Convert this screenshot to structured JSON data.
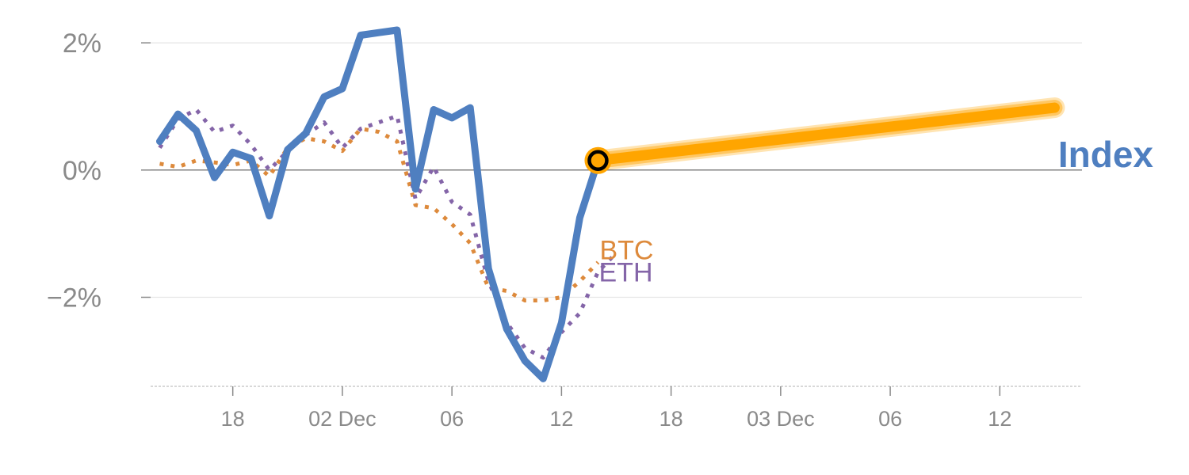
{
  "chart_data": {
    "type": "line",
    "y_unit": "%",
    "ylim": [
      -3.4,
      2.3
    ],
    "y_ticks": [
      2,
      0,
      -2
    ],
    "y_tick_labels": [
      "2%",
      "0%",
      "−2%"
    ],
    "x_ticks": [
      {
        "i": 4,
        "label": "18"
      },
      {
        "i": 10,
        "label": "02 Dec"
      },
      {
        "i": 16,
        "label": "06"
      },
      {
        "i": 22,
        "label": "12"
      },
      {
        "i": 28,
        "label": "18"
      },
      {
        "i": 34,
        "label": "03 Dec"
      },
      {
        "i": 40,
        "label": "06"
      },
      {
        "i": 46,
        "label": "12"
      }
    ],
    "x_range": [
      -0.5,
      50.5
    ],
    "grid": true,
    "colors": {
      "Index": "#4f7fc0",
      "BTC": "#dd8a3c",
      "ETH": "#8465a8",
      "projection": "#ffa500",
      "grid": "#e6e6e6",
      "zero_line": "#808080",
      "tick_text": "#8a8a8a"
    },
    "series": [
      {
        "name": "Index",
        "x": [
          0,
          1,
          2,
          3,
          4,
          5,
          6,
          7,
          8,
          9,
          10,
          11,
          12,
          13,
          14,
          15,
          16,
          17,
          18,
          19,
          20,
          21,
          22,
          23,
          24
        ],
        "values": [
          0.45,
          0.88,
          0.62,
          -0.12,
          0.28,
          0.18,
          -0.72,
          0.32,
          0.58,
          1.15,
          1.28,
          2.12,
          2.16,
          2.2,
          -0.3,
          0.95,
          0.82,
          0.98,
          -1.55,
          -2.5,
          -3.0,
          -3.28,
          -2.4,
          -0.75,
          0.15
        ]
      },
      {
        "name": "BTC",
        "x": [
          0,
          1,
          2,
          3,
          4,
          5,
          6,
          7,
          8,
          9,
          10,
          11,
          12,
          13,
          14,
          15,
          16,
          17,
          18,
          19,
          20,
          21,
          22,
          23,
          24
        ],
        "values": [
          0.1,
          0.05,
          0.15,
          0.12,
          0.08,
          0.15,
          -0.1,
          0.35,
          0.5,
          0.45,
          0.3,
          0.65,
          0.6,
          0.45,
          -0.55,
          -0.6,
          -0.85,
          -1.15,
          -1.85,
          -1.9,
          -2.05,
          -2.05,
          -2.0,
          -1.75,
          -1.45
        ]
      },
      {
        "name": "ETH",
        "x": [
          0,
          1,
          2,
          3,
          4,
          5,
          6,
          7,
          8,
          9,
          10,
          11,
          12,
          13,
          14,
          15,
          16,
          17,
          18,
          19,
          20,
          21,
          22,
          23,
          24,
          25
        ],
        "values": [
          0.35,
          0.8,
          0.95,
          0.6,
          0.7,
          0.4,
          0.0,
          0.3,
          0.55,
          0.75,
          0.35,
          0.65,
          0.75,
          0.85,
          -0.45,
          0.05,
          -0.5,
          -0.7,
          -1.75,
          -2.4,
          -2.8,
          -2.95,
          -2.55,
          -2.25,
          -1.6,
          -1.3
        ]
      }
    ],
    "projection": {
      "x": [
        24,
        49
      ],
      "values": [
        0.15,
        0.98
      ]
    },
    "labels": [
      {
        "series": "Index",
        "text": "Index"
      },
      {
        "series": "BTC",
        "text": "BTC"
      },
      {
        "series": "ETH",
        "text": "ETH"
      }
    ]
  }
}
